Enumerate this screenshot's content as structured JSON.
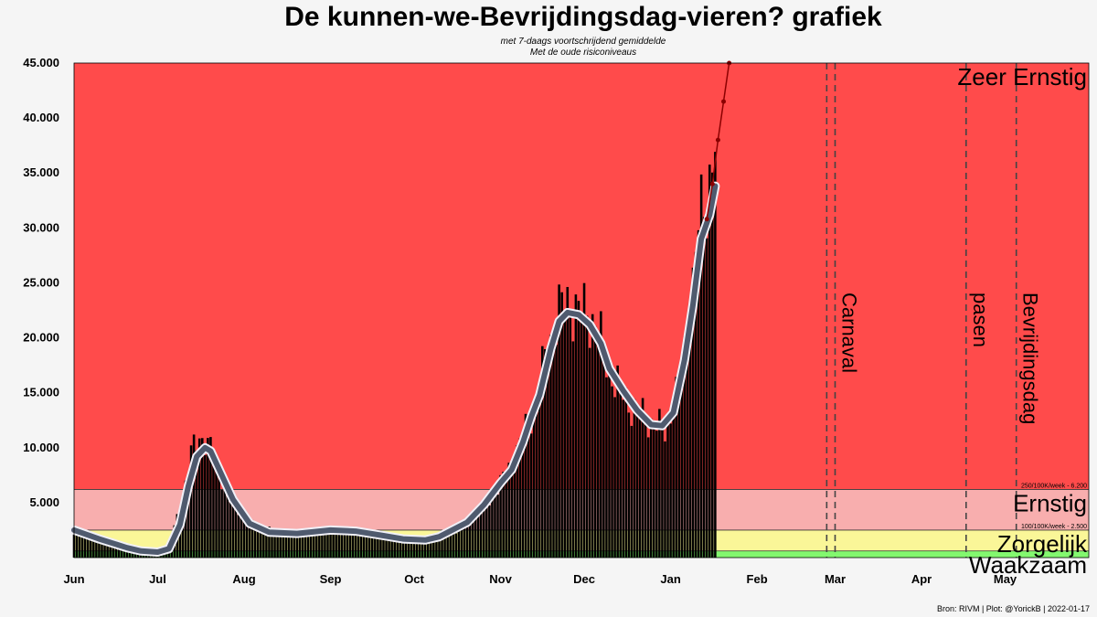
{
  "title": "De kunnen-we-Bevrijdingsdag-vieren? grafiek",
  "subtitle": [
    "met 7-daags voortschrijdend gemiddelde",
    "Met de oude risiconiveaus"
  ],
  "caption": "Bron: RIVM | Plot: @YorickB  |  2022-01-17",
  "colors": {
    "zeer_ernstig": "#ff4b4b",
    "ernstig": "#f8aeae",
    "zorgelijk": "#faf698",
    "waakzaam": "#83f86f",
    "bars": "#000000",
    "avg_outer": "#f0f0f8",
    "avg_inner": "#4f5a6e",
    "forecast": "#8b0000"
  },
  "chart_data": {
    "type": "bar",
    "x_start": "2021-06-01",
    "x_end": "2022-05-31",
    "ylim": [
      0,
      45000
    ],
    "yticks": [
      5000,
      10000,
      15000,
      20000,
      25000,
      30000,
      35000,
      40000,
      45000
    ],
    "ytick_labels": [
      "5.000",
      "10.000",
      "15.000",
      "20.000",
      "25.000",
      "30.000",
      "35.000",
      "40.000",
      "45.000"
    ],
    "xticks": [
      {
        "date": "2021-06-01",
        "label": "Jun"
      },
      {
        "date": "2021-07-01",
        "label": "Jul"
      },
      {
        "date": "2021-08-01",
        "label": "Aug"
      },
      {
        "date": "2021-09-01",
        "label": "Sep"
      },
      {
        "date": "2021-10-01",
        "label": "Oct"
      },
      {
        "date": "2021-11-01",
        "label": "Nov"
      },
      {
        "date": "2021-12-01",
        "label": "Dec"
      },
      {
        "date": "2022-01-01",
        "label": "Jan"
      },
      {
        "date": "2022-02-01",
        "label": "Feb"
      },
      {
        "date": "2022-03-01",
        "label": "Mar"
      },
      {
        "date": "2022-04-01",
        "label": "Apr"
      },
      {
        "date": "2022-05-01",
        "label": "May"
      }
    ],
    "risk_levels": [
      {
        "name": "Waakzaam",
        "from": 0,
        "to": 600,
        "color": "#83f86f",
        "note": ""
      },
      {
        "name": "Zorgelijk",
        "from": 600,
        "to": 2500,
        "color": "#faf698",
        "note": "100/100K/week - 2.500"
      },
      {
        "name": "Ernstig",
        "from": 2500,
        "to": 6200,
        "color": "#f8aeae",
        "note": "250/100K/week - 6.200"
      },
      {
        "name": "Zeer Ernstig",
        "from": 6200,
        "to": 45000,
        "color": "#ff4b4b",
        "note": ""
      }
    ],
    "events": [
      {
        "label": "Carnaval",
        "dates": [
          "2022-02-26",
          "2022-03-01"
        ]
      },
      {
        "label": "pasen",
        "dates": [
          "2022-04-17"
        ]
      },
      {
        "label": "Bevrijdingsdag",
        "dates": [
          "2022-05-05"
        ]
      }
    ],
    "moving_average": [
      [
        "2021-06-01",
        2500
      ],
      [
        "2021-06-10",
        1700
      ],
      [
        "2021-06-20",
        900
      ],
      [
        "2021-06-25",
        600
      ],
      [
        "2021-07-01",
        500
      ],
      [
        "2021-07-05",
        800
      ],
      [
        "2021-07-09",
        3000
      ],
      [
        "2021-07-12",
        6500
      ],
      [
        "2021-07-15",
        9200
      ],
      [
        "2021-07-18",
        10000
      ],
      [
        "2021-07-20",
        9700
      ],
      [
        "2021-07-24",
        7500
      ],
      [
        "2021-07-28",
        5300
      ],
      [
        "2021-08-03",
        3100
      ],
      [
        "2021-08-10",
        2300
      ],
      [
        "2021-08-20",
        2200
      ],
      [
        "2021-09-01",
        2500
      ],
      [
        "2021-09-10",
        2400
      ],
      [
        "2021-09-20",
        2000
      ],
      [
        "2021-09-27",
        1700
      ],
      [
        "2021-10-05",
        1600
      ],
      [
        "2021-10-10",
        1900
      ],
      [
        "2021-10-20",
        3200
      ],
      [
        "2021-10-26",
        4800
      ],
      [
        "2021-11-01",
        6800
      ],
      [
        "2021-11-05",
        8000
      ],
      [
        "2021-11-09",
        10500
      ],
      [
        "2021-11-12",
        12800
      ],
      [
        "2021-11-15",
        14800
      ],
      [
        "2021-11-19",
        19000
      ],
      [
        "2021-11-22",
        21500
      ],
      [
        "2021-11-25",
        22300
      ],
      [
        "2021-11-29",
        22100
      ],
      [
        "2021-12-03",
        21200
      ],
      [
        "2021-12-07",
        19500
      ],
      [
        "2021-12-10",
        17200
      ],
      [
        "2021-12-15",
        15200
      ],
      [
        "2021-12-20",
        13400
      ],
      [
        "2021-12-25",
        12100
      ],
      [
        "2021-12-29",
        12000
      ],
      [
        "2022-01-02",
        13200
      ],
      [
        "2022-01-06",
        18000
      ],
      [
        "2022-01-09",
        23000
      ],
      [
        "2022-01-12",
        29000
      ],
      [
        "2022-01-15",
        31200
      ],
      [
        "2022-01-17",
        33800
      ]
    ],
    "forecast": [
      [
        "2022-01-14",
        30800
      ],
      [
        "2022-01-16",
        34000
      ],
      [
        "2022-01-18",
        38000
      ],
      [
        "2022-01-20",
        41500
      ],
      [
        "2022-01-22",
        45000
      ]
    ],
    "daily_anchors": [
      [
        "2021-06-01",
        2600
      ],
      [
        "2021-06-15",
        1100
      ],
      [
        "2021-06-28",
        450
      ],
      [
        "2021-07-05",
        900
      ],
      [
        "2021-07-10",
        5500
      ],
      [
        "2021-07-13",
        9500
      ],
      [
        "2021-07-16",
        11000
      ],
      [
        "2021-07-19",
        10500
      ],
      [
        "2021-07-23",
        7800
      ],
      [
        "2021-07-28",
        5000
      ],
      [
        "2021-08-05",
        2800
      ],
      [
        "2021-08-15",
        2300
      ],
      [
        "2021-09-01",
        2500
      ],
      [
        "2021-09-15",
        2300
      ],
      [
        "2021-09-28",
        1700
      ],
      [
        "2021-10-08",
        1700
      ],
      [
        "2021-10-18",
        2800
      ],
      [
        "2021-10-28",
        5200
      ],
      [
        "2021-11-05",
        8500
      ],
      [
        "2021-11-12",
        13000
      ],
      [
        "2021-11-17",
        18000
      ],
      [
        "2021-11-22",
        22500
      ],
      [
        "2021-11-25",
        23000
      ],
      [
        "2021-11-30",
        22500
      ],
      [
        "2021-12-05",
        21500
      ],
      [
        "2021-12-10",
        17000
      ],
      [
        "2021-12-17",
        14000
      ],
      [
        "2021-12-24",
        12500
      ],
      [
        "2021-12-30",
        11500
      ],
      [
        "2022-01-04",
        15500
      ],
      [
        "2022-01-08",
        22000
      ],
      [
        "2022-01-11",
        30000
      ],
      [
        "2022-01-14",
        33000
      ],
      [
        "2022-01-17",
        38000
      ]
    ]
  }
}
